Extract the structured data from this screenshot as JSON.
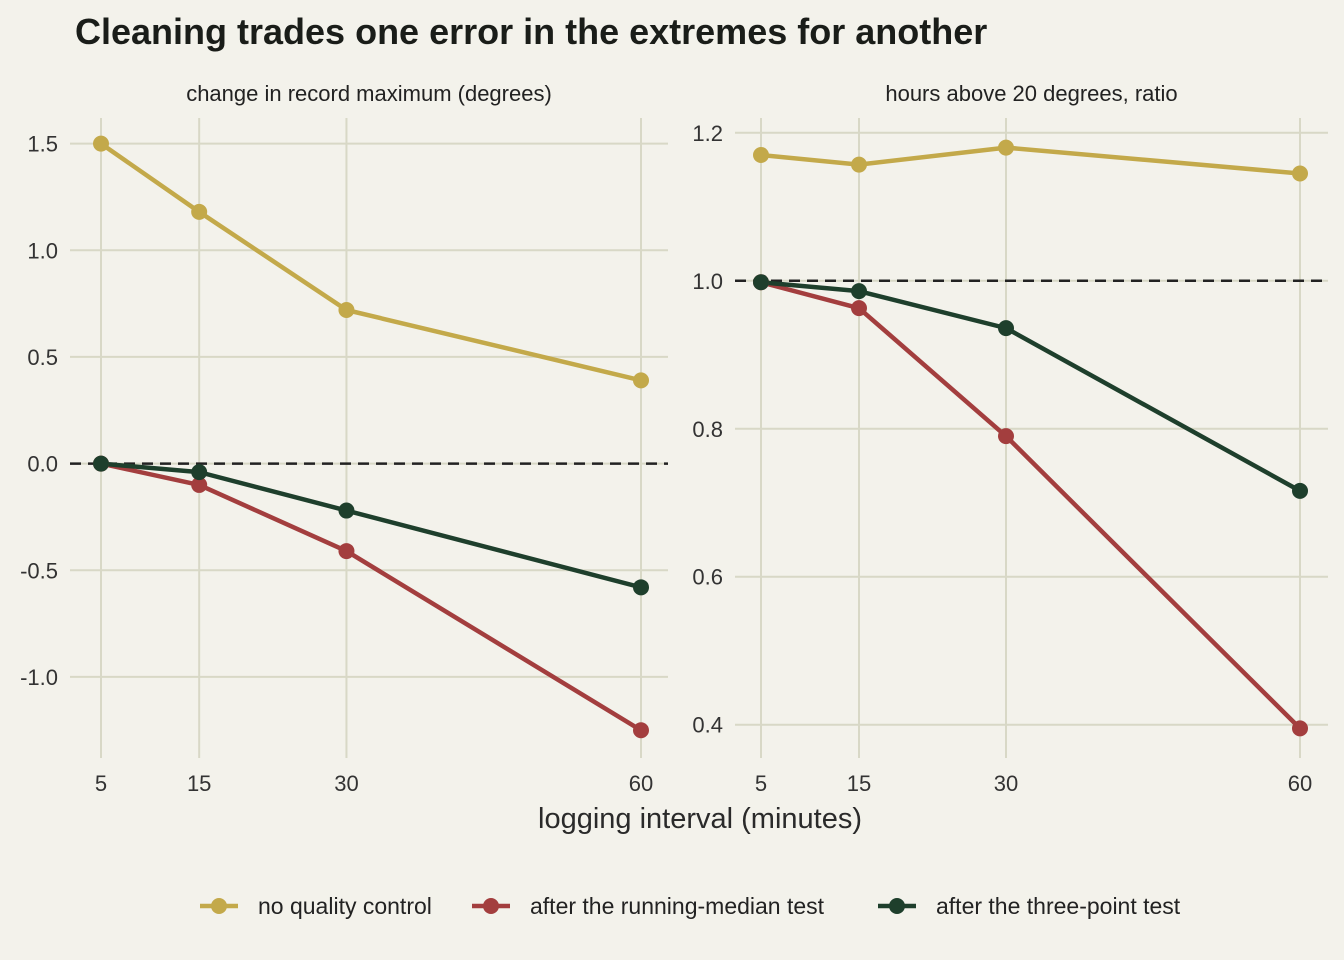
{
  "chart_data": {
    "type": "line",
    "title": "Cleaning trades one error in the extremes for another",
    "xlabel": "logging interval (minutes)",
    "x": [
      5,
      15,
      30,
      60
    ],
    "legend_position": "bottom",
    "series_meta": [
      {
        "key": "raw",
        "name": "no quality control",
        "color": "#c3a94a"
      },
      {
        "key": "median",
        "name": "after the running-median test",
        "color": "#a33e3e"
      },
      {
        "key": "three",
        "name": "after the three-point test",
        "color": "#1e3f2c"
      }
    ],
    "panels": [
      {
        "subtitle": "change in record maximum (degrees)",
        "ylim": [
          -1.38,
          1.62
        ],
        "yticks": [
          -1.0,
          -0.5,
          0.0,
          0.5,
          1.0,
          1.5
        ],
        "ytick_labels": [
          "-1.0",
          "-0.5",
          "0.0",
          "0.5",
          "1.0",
          "1.5"
        ],
        "reference_line": 0.0,
        "series": [
          {
            "name": "no quality control",
            "values": [
              1.5,
              1.18,
              0.72,
              0.39
            ]
          },
          {
            "name": "after the running-median test",
            "values": [
              0.0,
              -0.1,
              -0.41,
              -1.25
            ]
          },
          {
            "name": "after the three-point test",
            "values": [
              0.0,
              -0.04,
              -0.22,
              -0.58
            ]
          }
        ]
      },
      {
        "subtitle": "hours above 20 degrees, ratio",
        "ylim": [
          0.355,
          1.22
        ],
        "yticks": [
          0.4,
          0.6,
          0.8,
          1.0,
          1.2
        ],
        "ytick_labels": [
          "0.4",
          "0.6",
          "0.8",
          "1.0",
          "1.2"
        ],
        "reference_line": 1.0,
        "series": [
          {
            "name": "no quality control",
            "values": [
              1.17,
              1.157,
              1.18,
              1.145
            ]
          },
          {
            "name": "after the running-median test",
            "values": [
              0.998,
              0.963,
              0.79,
              0.395
            ]
          },
          {
            "name": "after the three-point test",
            "values": [
              0.998,
              0.986,
              0.936,
              0.716
            ]
          }
        ]
      }
    ]
  }
}
